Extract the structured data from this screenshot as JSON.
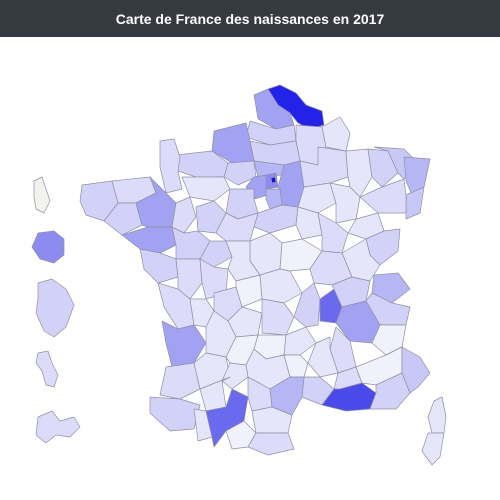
{
  "header": {
    "title": "Carte de France des naissances en 2017"
  },
  "map": {
    "color_scale": {
      "low": "#f4f4fc",
      "high": "#1010e6"
    },
    "fills": [
      "#f1f1fb",
      "#e6e6fa",
      "#dcdcfa",
      "#d2d2f8",
      "#c8c8f6",
      "#b6b6f4",
      "#a2a2f2",
      "#8c8cf0",
      "#6a6aee",
      "#4a4aeb",
      "#2222e8",
      "#1010e6"
    ],
    "no_data_color": "#f2f2ee"
  }
}
